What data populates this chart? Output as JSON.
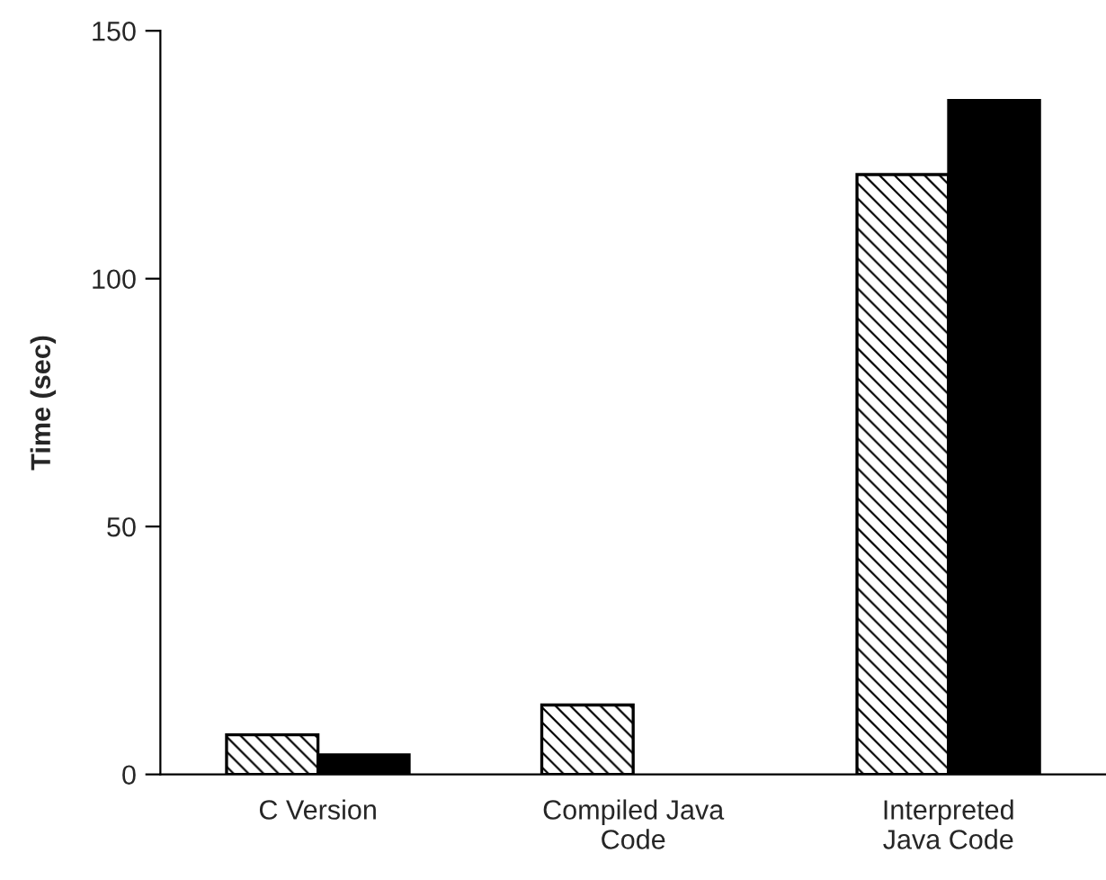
{
  "chart_data": {
    "type": "bar",
    "ylabel": "Time (sec)",
    "categories": [
      "C Version",
      "Compiled Java\nCode",
      "Interpreted\nJava Code"
    ],
    "series": [
      {
        "color": "#ffffff",
        "values": [
          8,
          14,
          121
        ]
      },
      {
        "color": "#000000",
        "values": [
          4,
          null,
          136
        ]
      }
    ],
    "ylim": [
      0,
      150
    ],
    "yticks": [
      0,
      50,
      100,
      150
    ],
    "grid": false
  }
}
